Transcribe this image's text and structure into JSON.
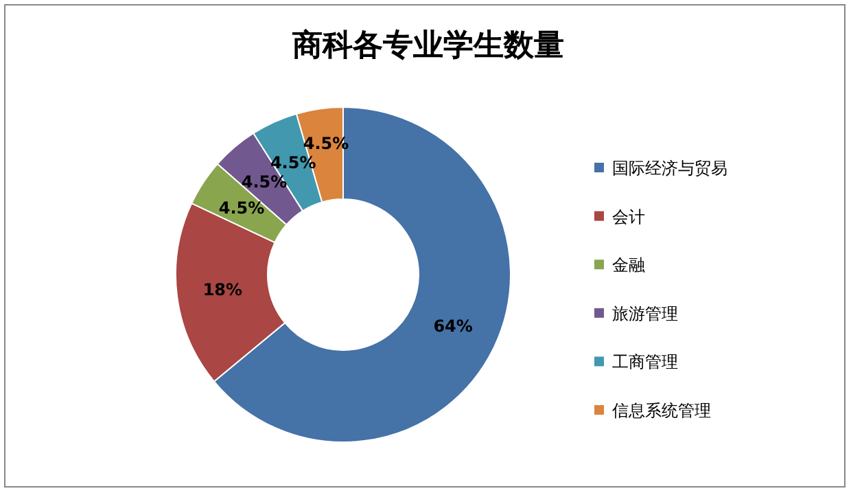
{
  "chart_data": {
    "type": "donut",
    "title": "商科各专业学生数量",
    "categories": [
      "国际经济与贸易",
      "会计",
      "金融",
      "旅游管理",
      "工商管理",
      "信息系统管理"
    ],
    "values": [
      64,
      18,
      4.5,
      4.5,
      4.5,
      4.5
    ],
    "colors": [
      "#4572a7",
      "#aa4643",
      "#89a54e",
      "#71588f",
      "#4198af",
      "#db843d"
    ],
    "value_labels": [
      "64%",
      "18%",
      "4.5%",
      "4.5%",
      "4.5%",
      "4.5%"
    ],
    "legend": "right"
  }
}
